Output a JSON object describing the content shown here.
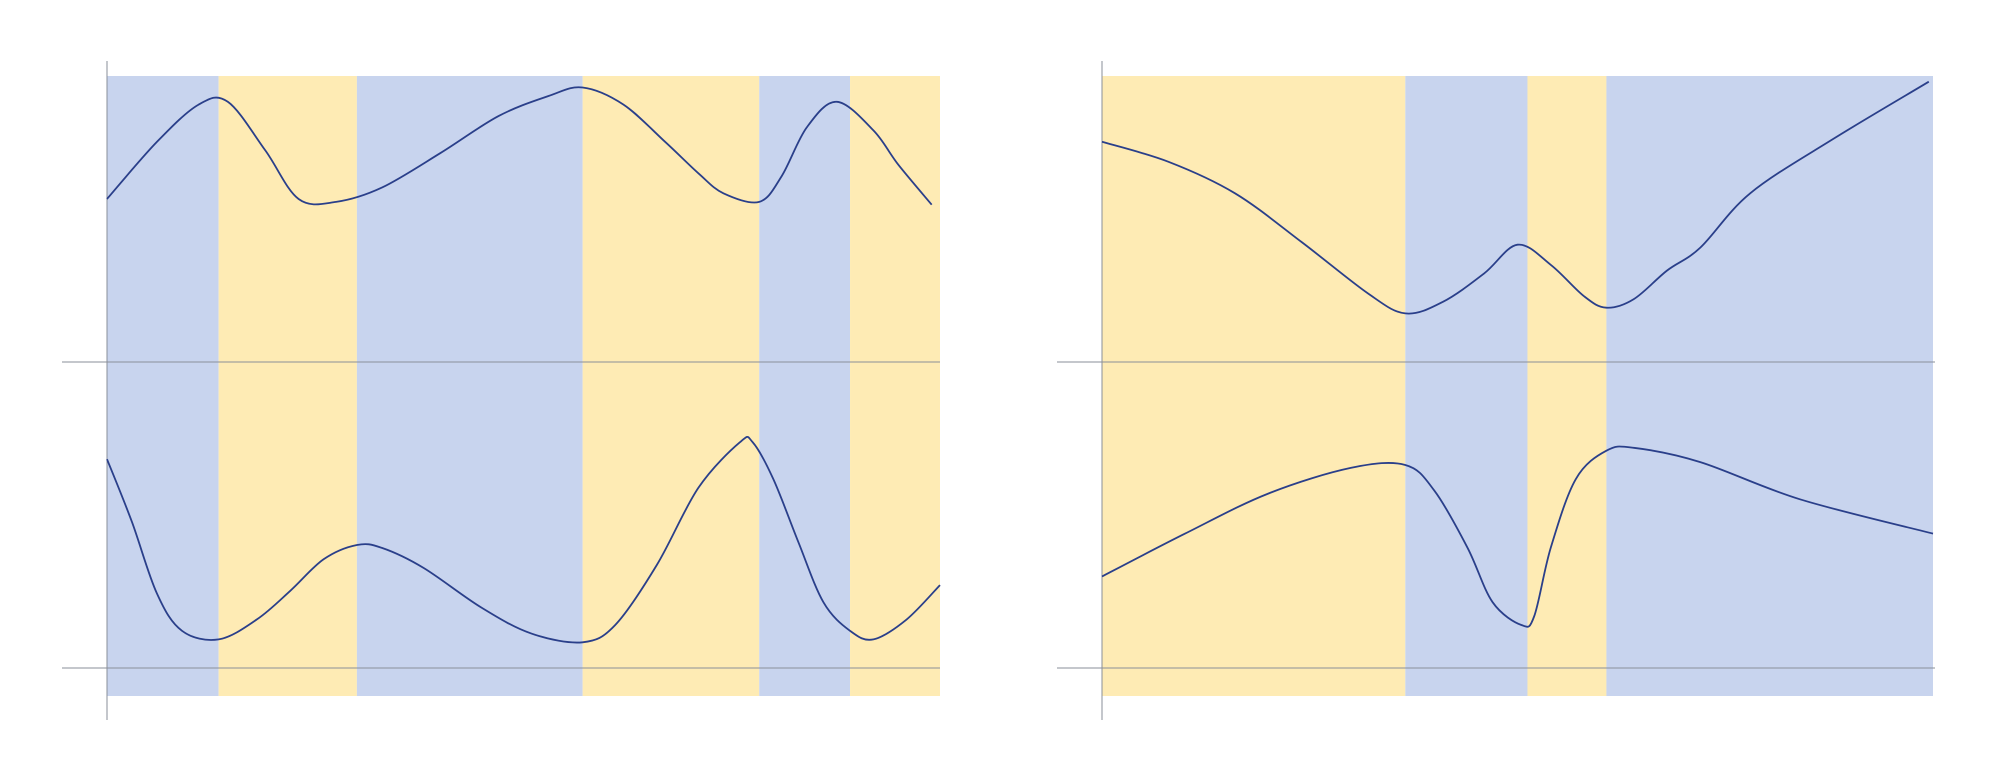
{
  "colors": {
    "band_blue": "#c8d4ee",
    "band_yellow": "#feebb4",
    "curve": "#2a3f8a",
    "axis": "#8a8f99"
  },
  "chart_data": [
    {
      "type": "line",
      "title": "",
      "xlabel": "",
      "ylabel": "",
      "grid": false,
      "xlim": [
        0,
        100
      ],
      "ylim": [
        -0.1,
        2.05
      ],
      "bands": [
        {
          "from": 0,
          "to": 13.4,
          "color": "blue"
        },
        {
          "from": 13.4,
          "to": 30.0,
          "color": "yellow"
        },
        {
          "from": 30.0,
          "to": 57.1,
          "color": "blue"
        },
        {
          "from": 57.1,
          "to": 78.3,
          "color": "yellow"
        },
        {
          "from": 78.3,
          "to": 89.2,
          "color": "blue"
        },
        {
          "from": 89.2,
          "to": 100,
          "color": "yellow"
        }
      ],
      "baselines": [
        0,
        1.07
      ],
      "series": [
        {
          "x": [
            0,
            6,
            11,
            14.5,
            19,
            23,
            27.5,
            33,
            40,
            47,
            53,
            57.1,
            62,
            67,
            71,
            74,
            78.3,
            81,
            84,
            87.6,
            92,
            95,
            99
          ],
          "y": [
            1.64,
            1.84,
            1.97,
            1.98,
            1.81,
            1.64,
            1.63,
            1.68,
            1.8,
            1.93,
            2.0,
            2.03,
            1.97,
            1.84,
            1.73,
            1.66,
            1.63,
            1.72,
            1.89,
            1.98,
            1.88,
            1.76,
            1.62
          ]
        },
        {
          "x": [
            0,
            3,
            6,
            9,
            13.4,
            18,
            22,
            26,
            30,
            33,
            38,
            45,
            51,
            57.1,
            61,
            66,
            71,
            76,
            77.5,
            80,
            83,
            86,
            89.2,
            92,
            96,
            100
          ],
          "y": [
            0.73,
            0.51,
            0.26,
            0.13,
            0.1,
            0.17,
            0.27,
            0.38,
            0.43,
            0.42,
            0.35,
            0.21,
            0.12,
            0.09,
            0.15,
            0.36,
            0.63,
            0.79,
            0.79,
            0.66,
            0.44,
            0.23,
            0.13,
            0.1,
            0.17,
            0.29
          ]
        }
      ]
    },
    {
      "type": "line",
      "title": "",
      "xlabel": "",
      "ylabel": "",
      "grid": false,
      "xlim": [
        0,
        100
      ],
      "ylim": [
        -0.1,
        2.05
      ],
      "bands": [
        {
          "from": 0,
          "to": 36.5,
          "color": "yellow"
        },
        {
          "from": 36.5,
          "to": 51.2,
          "color": "blue"
        },
        {
          "from": 51.2,
          "to": 60.7,
          "color": "yellow"
        },
        {
          "from": 60.7,
          "to": 100,
          "color": "blue"
        }
      ],
      "baselines": [
        0,
        1.07
      ],
      "series": [
        {
          "x": [
            0,
            8,
            16,
            24,
            32,
            36.5,
            41,
            46,
            50,
            54,
            58,
            60.7,
            64,
            68,
            72,
            78,
            88,
            99.5
          ],
          "y": [
            1.84,
            1.77,
            1.66,
            1.49,
            1.31,
            1.24,
            1.28,
            1.38,
            1.48,
            1.41,
            1.3,
            1.26,
            1.29,
            1.39,
            1.47,
            1.66,
            1.85,
            2.05
          ]
        },
        {
          "x": [
            0,
            10,
            20,
            30,
            36.5,
            40,
            44,
            47,
            50.5,
            52,
            54,
            57,
            60.7,
            64,
            72,
            84,
            100
          ],
          "y": [
            0.32,
            0.47,
            0.61,
            0.7,
            0.71,
            0.62,
            0.42,
            0.23,
            0.15,
            0.18,
            0.42,
            0.66,
            0.76,
            0.77,
            0.72,
            0.59,
            0.47
          ]
        }
      ]
    }
  ]
}
